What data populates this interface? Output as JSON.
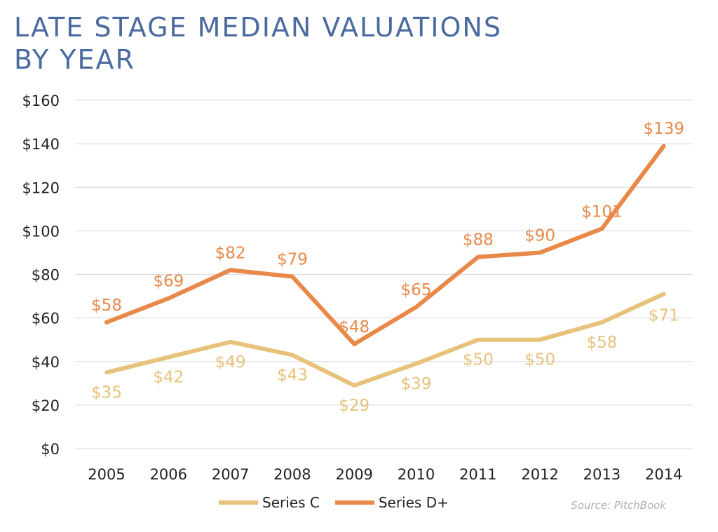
{
  "title": "LATE STAGE MEDIAN VALUATIONS BY YEAR",
  "source": "Source: PitchBook",
  "colors": {
    "series_c": "#e8c27a",
    "series_d": "#e8894a",
    "title": "#4a6aa0",
    "grid": "#d9d9d9"
  },
  "legend": {
    "series_c": "Series C",
    "series_d": "Series D+"
  },
  "chart_data": {
    "type": "line",
    "title": "LATE STAGE MEDIAN VALUATIONS BY YEAR",
    "categories": [
      "2005",
      "2006",
      "2007",
      "2008",
      "2009",
      "2010",
      "2011",
      "2012",
      "2013",
      "2014"
    ],
    "series": [
      {
        "name": "Series C",
        "values": [
          35,
          42,
          49,
          43,
          29,
          39,
          50,
          50,
          58,
          71
        ],
        "labels": [
          "$35",
          "$42",
          "$49",
          "$43",
          "$29",
          "$39",
          "$50",
          "$50",
          "$58",
          "$71"
        ]
      },
      {
        "name": "Series D+",
        "values": [
          58,
          69,
          82,
          79,
          48,
          65,
          88,
          90,
          101,
          139
        ],
        "labels": [
          "$58",
          "$69",
          "$82",
          "$79",
          "$48",
          "$65",
          "$88",
          "$90",
          "$101",
          "$139"
        ]
      }
    ],
    "ylim": [
      0,
      160
    ],
    "yticks": [
      0,
      20,
      40,
      60,
      80,
      100,
      120,
      140,
      160
    ],
    "ytick_labels": [
      "$0",
      "$20",
      "$40",
      "$60",
      "$80",
      "$100",
      "$120",
      "$140",
      "$160"
    ],
    "grid": true,
    "legend_position": "bottom",
    "xlabel": "",
    "ylabel": ""
  }
}
